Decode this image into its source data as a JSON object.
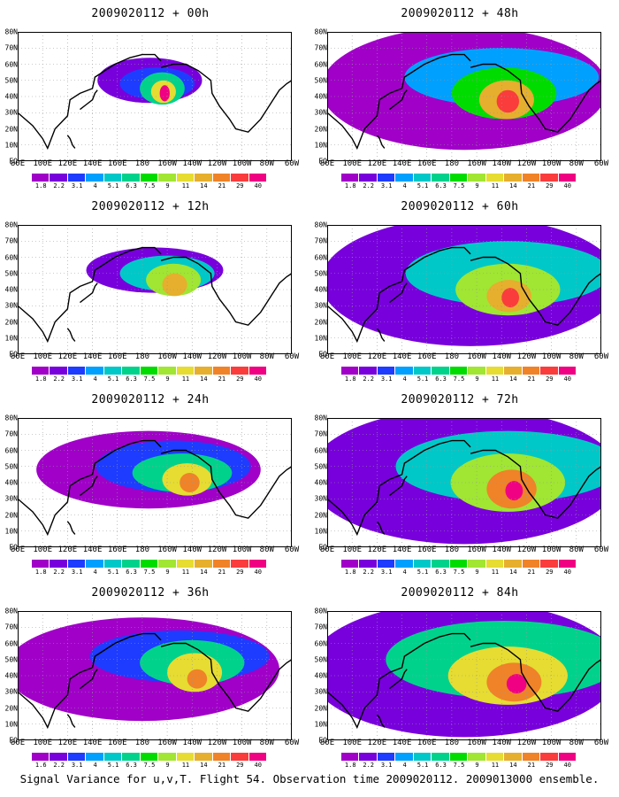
{
  "chart_data": {
    "type": "heatmap",
    "caption": "Signal Variance for u,v,T. Flight 54. Observation time 2009020112. 2009013000 ensemble.",
    "x_tick_labels": [
      "80E",
      "100E",
      "120E",
      "140E",
      "160E",
      "180",
      "160W",
      "140W",
      "120W",
      "100W",
      "80W",
      "60W"
    ],
    "y_tick_labels": [
      "EQ",
      "10N",
      "20N",
      "30N",
      "40N",
      "50N",
      "60N",
      "70N",
      "80N"
    ],
    "legend_levels": [
      "1.8",
      "2.2",
      "3.1",
      "4",
      "5.1",
      "6.3",
      "7.5",
      "9",
      "11",
      "14",
      "21",
      "29",
      "40"
    ],
    "legend_levels_bottom": [
      "1.6",
      "2.2",
      "3.1",
      "4",
      "5.1",
      "6.3",
      "7.5",
      "9",
      "11",
      "14",
      "21",
      "29",
      "40"
    ],
    "legend_colors": [
      "#a000c8",
      "#7800dc",
      "#1e3cff",
      "#00a0ff",
      "#00c8c8",
      "#00d28c",
      "#00dc00",
      "#a0e632",
      "#e6dc32",
      "#e6af2d",
      "#f08228",
      "#fa3c3c",
      "#f00082"
    ],
    "panels": [
      {
        "title": "2009020112 + 00h",
        "lead_hours": 0
      },
      {
        "title": "2009020112 + 48h",
        "lead_hours": 48
      },
      {
        "title": "2009020112 + 12h",
        "lead_hours": 12
      },
      {
        "title": "2009020112 + 60h",
        "lead_hours": 60
      },
      {
        "title": "2009020112 + 24h",
        "lead_hours": 24
      },
      {
        "title": "2009020112 + 72h",
        "lead_hours": 72
      },
      {
        "title": "2009020112 + 36h",
        "lead_hours": 36
      },
      {
        "title": "2009020112 + 84h",
        "lead_hours": 84
      }
    ]
  }
}
